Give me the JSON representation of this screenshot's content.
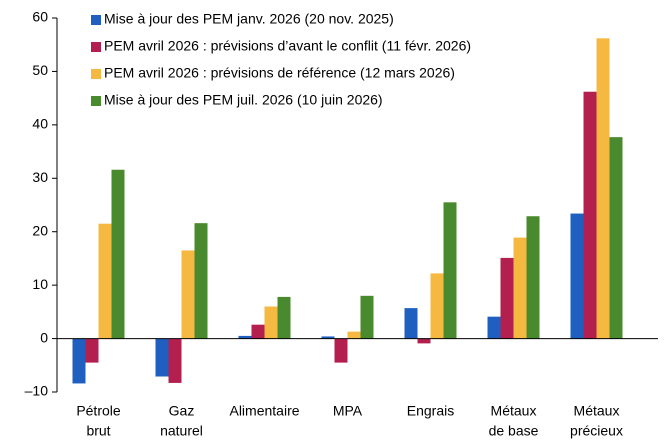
{
  "chart_data": {
    "type": "bar",
    "categories": [
      [
        "Pétrole",
        "brut"
      ],
      [
        "Gaz",
        "naturel"
      ],
      [
        "Alimentaire"
      ],
      [
        "MPA"
      ],
      [
        "Engrais"
      ],
      [
        "Métaux",
        "de base"
      ],
      [
        "Métaux",
        "précieux"
      ]
    ],
    "series": [
      {
        "name": "Mise à jour des PEM janv. 2026 (20 nov. 2025)",
        "color": "#1f5fbf",
        "values": [
          -8.4,
          -7.1,
          0.5,
          0.4,
          5.7,
          4.1,
          23.4
        ]
      },
      {
        "name": "PEM avril 2026 : prévisions d’avant le conflit (11 févr. 2026)",
        "color": "#b3204f",
        "values": [
          -4.5,
          -8.3,
          2.6,
          -4.5,
          -0.9,
          15.1,
          46.2
        ]
      },
      {
        "name": "PEM avril 2026 : prévisions de référence (12 mars 2026)",
        "color": "#f5b841",
        "values": [
          21.5,
          16.5,
          6.0,
          1.3,
          12.2,
          18.9,
          56.2
        ]
      },
      {
        "name": "Mise à jour des PEM juil. 2026 (10 juin 2026)",
        "color": "#4a8a2e",
        "values": [
          31.6,
          21.6,
          7.8,
          8.0,
          25.5,
          22.9,
          37.7
        ]
      }
    ],
    "ylim": [
      -10,
      60
    ],
    "yticks": [
      {
        "value": -10,
        "label": "–10"
      },
      0,
      10,
      20,
      30,
      40,
      50,
      60
    ]
  }
}
